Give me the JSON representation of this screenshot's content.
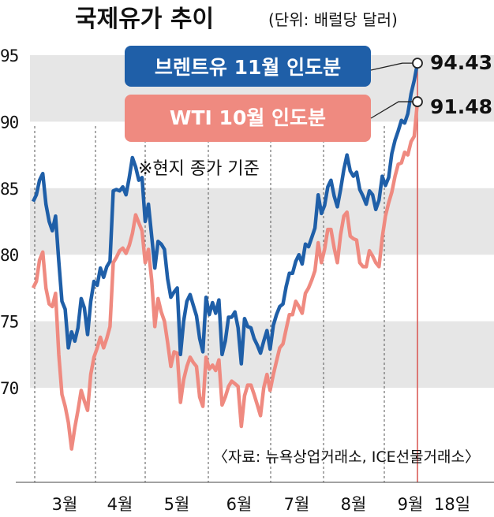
{
  "chart_data": {
    "type": "line",
    "title": "국제유가 추이",
    "subtitle": "(단위: 배럴당 달러)",
    "ylim": [
      65,
      95
    ],
    "yticks": [
      95,
      90,
      85,
      80,
      75,
      70
    ],
    "xticks": [
      "3월",
      "4월",
      "5월",
      "6월",
      "7월",
      "8월",
      "9월"
    ],
    "end_label": "18일",
    "note": "※현지 종가 기준",
    "source": "〈자료: 뉴욕상업거래소, ICE선물거래소〉",
    "grid_bands": true,
    "series": [
      {
        "name": "브렌트유 11월 인도분",
        "color": "#1f5fa8",
        "last_value": "94.43",
        "values": [
          84,
          84.5,
          85.6,
          86.1,
          83.8,
          82.5,
          81.8,
          82.9,
          79.5,
          76.5,
          75.9,
          73,
          74.2,
          73.5,
          74.5,
          76.7,
          76,
          74,
          76.5,
          78,
          77.7,
          79,
          78.3,
          79.1,
          79.5,
          84.8,
          84.9,
          84.8,
          85.1,
          84.5,
          85.8,
          87.3,
          86.6,
          85.6,
          85.8,
          82.5,
          83.8,
          81.4,
          79,
          81,
          80.8,
          80.4,
          78.2,
          76.8,
          77.2,
          77.5,
          72.5,
          75,
          76.5,
          77,
          76.2,
          75.4,
          73.7,
          72.7,
          76.8,
          75.5,
          76.4,
          75.6,
          76.6,
          72.5,
          73.5,
          75.3,
          75.3,
          75.7,
          74.5,
          71.8,
          75.2,
          74.6,
          74.5,
          73.7,
          73.2,
          72.6,
          73.5,
          74.3,
          72.9,
          74.7,
          75.5,
          76.1,
          76.3,
          77.6,
          78.6,
          78.6,
          79.5,
          80,
          79.3,
          80.8,
          80.6,
          81.3,
          82,
          84.5,
          83.1,
          83.7,
          85.1,
          85.6,
          84.4,
          83.6,
          84.9,
          86.4,
          87.5,
          86.3,
          85.9,
          86.2,
          84.9,
          84.4,
          83.8,
          84.8,
          84.5,
          83.4,
          84.1,
          85.9,
          85.2,
          85.8,
          87.6,
          88.6,
          89.3,
          90.1,
          89.9,
          90.6,
          92.1,
          93.1,
          94.4
        ]
      },
      {
        "name": "WTI 10월 인도분",
        "color": "#ef8a80",
        "last_value": "91.48",
        "values": [
          77.5,
          78,
          79.6,
          80.2,
          77.5,
          76.3,
          76.1,
          77.1,
          72.5,
          69.5,
          68.6,
          67.4,
          65.4,
          67,
          68.3,
          69.8,
          69,
          68.3,
          71,
          72.3,
          73,
          73.8,
          73,
          73.7,
          74.6,
          79.4,
          79.8,
          80.3,
          80.5,
          80.1,
          80.7,
          81.6,
          83,
          82.4,
          81.8,
          79.4,
          80.4,
          78.1,
          74.6,
          76.7,
          75.7,
          75,
          73.4,
          71.6,
          72.7,
          72.6,
          68.9,
          70.6,
          71.6,
          72.3,
          71.9,
          71.6,
          69.3,
          68.6,
          72.3,
          71.4,
          71.7,
          71.3,
          72.1,
          68.7,
          69.3,
          70.1,
          70.5,
          70.3,
          70.1,
          67.1,
          69.4,
          70.2,
          70.2,
          69.5,
          68.7,
          67.9,
          70,
          71,
          69.8,
          71,
          72,
          73,
          73.3,
          74.4,
          75.5,
          75.5,
          76.5,
          76.1,
          75.6,
          77.1,
          77.5,
          78.1,
          78.8,
          80.9,
          79.4,
          80.4,
          81.9,
          81.9,
          80.5,
          79.4,
          81.5,
          82.9,
          83.2,
          81.4,
          81.2,
          81.1,
          79.4,
          79.1,
          79.1,
          80.3,
          79.9,
          79.4,
          79.1,
          81.3,
          82.9,
          83.9,
          84.7,
          85.9,
          86.8,
          86.9,
          87.7,
          87.5,
          88.5,
          88.9,
          91.5
        ]
      }
    ]
  }
}
